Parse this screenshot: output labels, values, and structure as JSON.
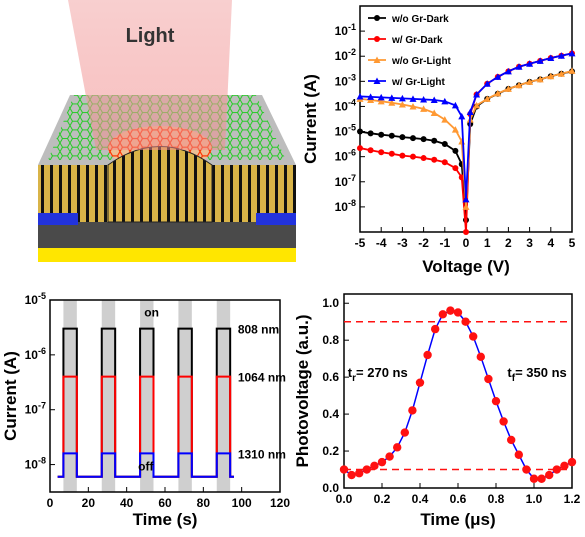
{
  "device": {
    "light_label": "Light",
    "colors": {
      "graphene_top": "#22cc22",
      "graphene_hot": "#ff2200",
      "pillar": "#d9b448",
      "pillar_stripe": "#111111",
      "electrode": "#2233dd",
      "substrate": "#555555",
      "bottom": "#ffe600"
    }
  },
  "chart_data": [
    {
      "type": "line",
      "xlabel": "Voltage (V)",
      "ylabel": "Current (A)",
      "xlim": [
        -5,
        5
      ],
      "ylim_log10": [
        -9,
        0
      ],
      "yscale": "log",
      "x_ticks": [
        "-5",
        "-4",
        "-3",
        "-2",
        "-1",
        "0",
        "1",
        "2",
        "3",
        "4",
        "5"
      ],
      "y_ticks": [
        "10-1",
        "10-2",
        "10-3",
        "10-4",
        "10-5",
        "10-6",
        "10-7",
        "10-8"
      ],
      "legend_placement": "top-left",
      "series": [
        {
          "name": "w/o Gr-Dark",
          "color": "#000000",
          "x": [
            -5,
            -4.5,
            -4,
            -3.5,
            -3,
            -2.5,
            -2,
            -1.5,
            -1,
            -0.5,
            -0.2,
            0,
            0.2,
            0.5,
            1,
            1.5,
            2,
            2.5,
            3,
            3.5,
            4,
            4.5,
            5
          ],
          "y": [
            1e-05,
            8.5e-06,
            7.5e-06,
            6.8e-06,
            6e-06,
            5.5e-06,
            5e-06,
            4.3e-06,
            3.2e-06,
            1.7e-06,
            5e-07,
            3e-09,
            2e-05,
            0.0001,
            0.0002,
            0.00032,
            0.0005,
            0.0007,
            0.00095,
            0.0012,
            0.0016,
            0.002,
            0.0025
          ]
        },
        {
          "name": "w/ Gr-Dark",
          "color": "#ff0000",
          "x": [
            -5,
            -4.5,
            -4,
            -3.5,
            -3,
            -2.5,
            -2,
            -1.5,
            -1,
            -0.5,
            -0.2,
            0,
            0.2,
            0.5,
            1,
            1.5,
            2,
            2.5,
            3,
            3.5,
            4,
            4.5,
            5
          ],
          "y": [
            2.2e-06,
            1.8e-06,
            1.5e-06,
            1.3e-06,
            1.1e-06,
            1e-06,
            8.8e-07,
            7.5e-07,
            6e-07,
            3.5e-07,
            1.5e-07,
            1e-09,
            5e-05,
            0.0003,
            0.0008,
            0.0015,
            0.0025,
            0.0038,
            0.005,
            0.0065,
            0.0085,
            0.0105,
            0.013
          ]
        },
        {
          "name": "w/o Gr-Light",
          "color": "#ff9933",
          "x": [
            -5,
            -4.5,
            -4,
            -3.5,
            -3,
            -2.5,
            -2,
            -1.5,
            -1,
            -0.5,
            -0.2,
            0,
            0.2,
            0.5,
            1,
            1.5,
            2,
            2.5,
            3,
            3.5,
            4,
            4.5,
            5
          ],
          "y": [
            0.0002,
            0.00018,
            0.00016,
            0.00014,
            0.00012,
            0.0001,
            8e-05,
            5.5e-05,
            3e-05,
            1.2e-05,
            4e-06,
            1e-08,
            3e-05,
            0.00011,
            0.0002,
            0.00033,
            0.0005,
            0.0007,
            0.00095,
            0.0012,
            0.0016,
            0.002,
            0.0026
          ]
        },
        {
          "name": "w/ Gr-Light",
          "color": "#0000ff",
          "x": [
            -5,
            -4.5,
            -4,
            -3.5,
            -3,
            -2.5,
            -2,
            -1.5,
            -1,
            -0.5,
            -0.2,
            0,
            0.2,
            0.5,
            1,
            1.5,
            2,
            2.5,
            3,
            3.5,
            4,
            4.5,
            5
          ],
          "y": [
            0.00025,
            0.00024,
            0.00023,
            0.00022,
            0.00021,
            0.0002,
            0.00019,
            0.00018,
            0.00016,
            0.00011,
            4e-05,
            2e-08,
            6e-05,
            0.0003,
            0.0008,
            0.0015,
            0.0025,
            0.0038,
            0.005,
            0.0065,
            0.0085,
            0.0105,
            0.013
          ]
        }
      ]
    },
    {
      "type": "line",
      "xlabel": "Time (s)",
      "ylabel": "Current (A)",
      "xlim": [
        0,
        120
      ],
      "ylim_log10": [
        -8.5,
        -5
      ],
      "yscale": "log",
      "x_ticks": [
        "0",
        "20",
        "40",
        "60",
        "80",
        "100",
        "120"
      ],
      "y_ticks": [
        "10-5",
        "10-6",
        "10-7",
        "10-8"
      ],
      "on_label": "on",
      "off_label": "off",
      "on_periods": [
        [
          7,
          14
        ],
        [
          27,
          34
        ],
        [
          47,
          54
        ],
        [
          67,
          74
        ],
        [
          87,
          94
        ]
      ],
      "series": [
        {
          "name": "808 nm",
          "color": "#000000",
          "off_value": 6e-09,
          "on_value": 3e-06
        },
        {
          "name": "1064 nm",
          "color": "#ff0000",
          "off_value": 6e-09,
          "on_value": 4e-07
        },
        {
          "name": "1310 nm",
          "color": "#0000ff",
          "off_value": 6e-09,
          "on_value": 1.6e-08
        }
      ]
    },
    {
      "type": "line",
      "xlabel": "Time (μs)",
      "ylabel": "Photovoltage (a.u.)",
      "xlim": [
        0,
        1.2
      ],
      "ylim": [
        0,
        1.05
      ],
      "x_ticks": [
        "0.0",
        "0.2",
        "0.4",
        "0.6",
        "0.8",
        "1.0",
        "1.2"
      ],
      "y_ticks": [
        "0.0",
        "0.2",
        "0.4",
        "0.6",
        "0.8",
        "1.0"
      ],
      "rise_label_main": "t",
      "rise_label_sub": "r",
      "rise_value": "= 270 ns",
      "fall_label_main": "t",
      "fall_label_sub": "f",
      "fall_value": "= 350 ns",
      "ref_lines": [
        0.9,
        0.1
      ],
      "series": [
        {
          "name": "",
          "color": "#0000ff",
          "marker_color": "#ff1111",
          "x": [
            0.0,
            0.04,
            0.08,
            0.12,
            0.16,
            0.2,
            0.24,
            0.28,
            0.32,
            0.36,
            0.4,
            0.44,
            0.48,
            0.52,
            0.56,
            0.6,
            0.64,
            0.68,
            0.72,
            0.76,
            0.8,
            0.84,
            0.88,
            0.92,
            0.96,
            1.0,
            1.04,
            1.08,
            1.12,
            1.16,
            1.2
          ],
          "y": [
            0.1,
            0.07,
            0.08,
            0.1,
            0.12,
            0.14,
            0.17,
            0.22,
            0.3,
            0.42,
            0.57,
            0.72,
            0.86,
            0.94,
            0.96,
            0.95,
            0.9,
            0.82,
            0.71,
            0.59,
            0.47,
            0.36,
            0.26,
            0.18,
            0.1,
            0.05,
            0.05,
            0.07,
            0.1,
            0.12,
            0.14
          ]
        }
      ]
    }
  ]
}
